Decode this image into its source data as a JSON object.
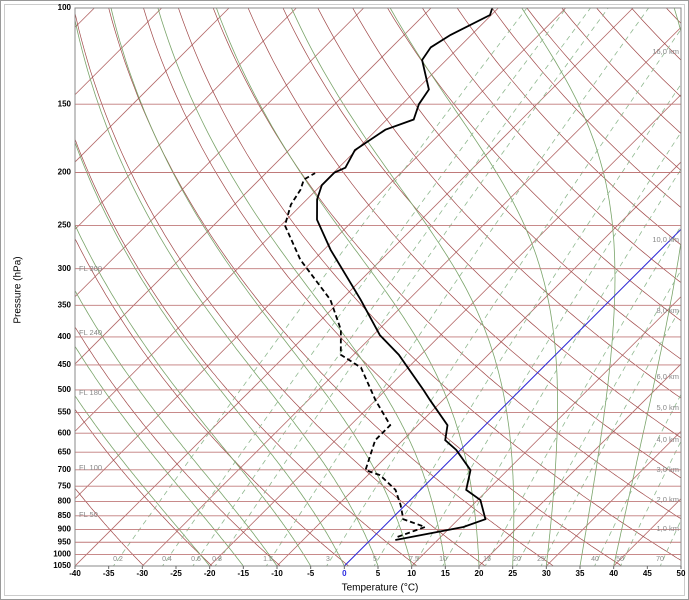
{
  "chart_data": {
    "type": "skewt",
    "xlabel": "Temperature (°C)",
    "ylabel": "Pressure (hPa)",
    "xlim": [
      -40,
      50
    ],
    "ylim": [
      1050,
      100
    ],
    "ylog": true,
    "xticks": [
      -40,
      -35,
      -30,
      -25,
      -20,
      -15,
      -10,
      -5,
      0,
      5,
      10,
      15,
      20,
      25,
      30,
      35,
      40,
      45,
      50
    ],
    "yticks": [
      100,
      150,
      200,
      250,
      300,
      350,
      400,
      450,
      500,
      550,
      600,
      650,
      700,
      750,
      800,
      850,
      900,
      950,
      1000,
      1050
    ],
    "isotherm_highlight": {
      "value": 0,
      "color": "#2a2ae0"
    },
    "mixing_ratios": [
      0.2,
      0.4,
      0.6,
      0.8,
      1.5,
      3,
      5,
      7.5,
      10,
      15,
      20,
      25,
      40,
      50,
      70
    ],
    "flight_levels": [
      "FL 300",
      "FL 240",
      "FL 180",
      "FL 100",
      "FL 50"
    ],
    "height_labels": [
      "16,0 km",
      "10,0 km",
      "8,0 km",
      "6,0 km",
      "5,0 km",
      "4,0 km",
      "3,0 km",
      "2,0 km",
      "1,0 km"
    ],
    "series": [
      {
        "color": "#000000",
        "dash": false,
        "pressure": [
          941,
          891,
          862,
          795,
          762,
          701,
          644,
          618,
          580,
          522,
          500,
          431,
          397,
          342,
          277,
          244,
          224,
          211,
          200,
          196,
          182,
          167,
          160,
          150,
          141,
          124.5,
          118,
          112,
          103,
          100
        ],
        "values": [
          3.7,
          11.9,
          14.0,
          10.4,
          6.8,
          4.5,
          -0.6,
          -3.7,
          -5.6,
          -11.9,
          -14.4,
          -23.3,
          -29.0,
          -37.1,
          -49.0,
          -55.5,
          -58.5,
          -59.9,
          -59.9,
          -59.0,
          -60.2,
          -58.7,
          -56.0,
          -57.5,
          -58.2,
          -63.6,
          -64.2,
          -63.1,
          -60.2,
          -60.9
        ]
      },
      {
        "color": "#000000",
        "dash": true,
        "pressure": [
          929,
          891,
          862,
          812,
          762,
          716,
          701,
          618,
          580,
          522,
          455,
          431,
          388,
          342,
          289,
          250,
          229,
          215,
          206,
          200.5
        ],
        "values": [
          3.6,
          6.2,
          1.8,
          -0.7,
          -3.7,
          -8.2,
          -11.1,
          -14.1,
          -14.1,
          -20.0,
          -27.0,
          -31.9,
          -35.6,
          -41.6,
          -52.0,
          -59.4,
          -61.6,
          -62.4,
          -63.4,
          -62.7
        ]
      }
    ]
  }
}
